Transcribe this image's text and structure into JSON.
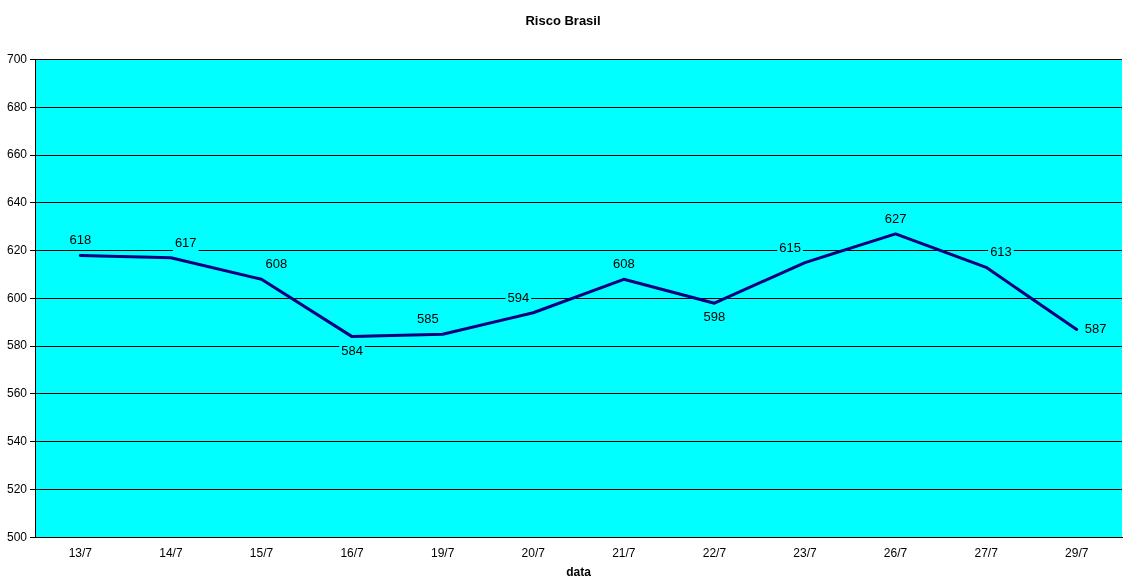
{
  "chart_data": {
    "type": "line",
    "title": "Risco Brasil",
    "xlabel": "data",
    "categories": [
      "13/7",
      "14/7",
      "15/7",
      "16/7",
      "19/7",
      "20/7",
      "21/7",
      "22/7",
      "23/7",
      "26/7",
      "27/7",
      "29/7"
    ],
    "series": [
      {
        "color": "#000080",
        "values": [
          618,
          617,
          608,
          584,
          585,
          594,
          608,
          598,
          615,
          627,
          613,
          587
        ]
      }
    ],
    "ylim": [
      500,
      700
    ],
    "yticks": [
      500,
      520,
      540,
      560,
      580,
      600,
      620,
      640,
      660,
      680,
      700
    ],
    "grid": "y",
    "legend": false,
    "marker": "none",
    "line_style": "solid",
    "data_labels": true
  }
}
